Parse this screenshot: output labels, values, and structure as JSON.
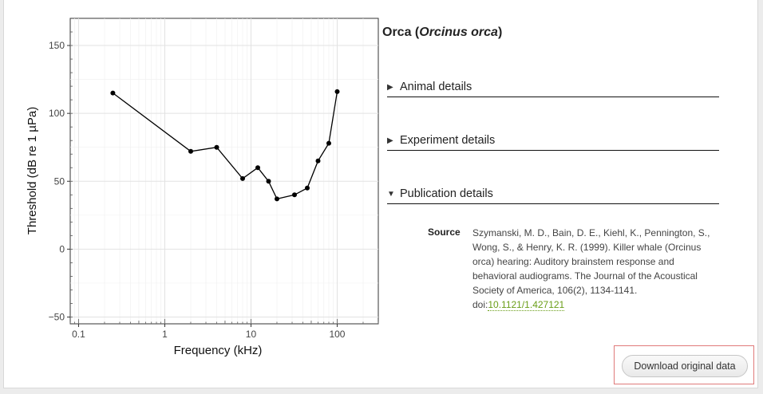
{
  "species": {
    "common_name": "Orca",
    "scientific_name": "Orcinus orca"
  },
  "sections": [
    {
      "label": "Animal details",
      "expanded": false
    },
    {
      "label": "Experiment details",
      "expanded": false
    },
    {
      "label": "Publication details",
      "expanded": true
    }
  ],
  "publication": {
    "source_label": "Source",
    "citation": "Szymanski, M. D., Bain, D. E., Kiehl, K., Pennington, S., Wong, S., & Henry, K. R. (1999). Killer whale (Orcinus orca) hearing: Auditory brainstem response and behavioral audiograms. The Journal of the Acoustical Society of America, 106(2), 1134-1141.",
    "doi_prefix": "doi:",
    "doi_link": "10.1121/1.427121"
  },
  "download_label": "Download original data",
  "colors": {
    "link": "#6a9e18",
    "highlight_border": "#e07a7a",
    "line": "#000000"
  },
  "chart_data": {
    "type": "line",
    "xlabel": "Frequency (kHz)",
    "ylabel": "Threshold (dB re 1 µPa)",
    "x_scale": "log",
    "xlim": [
      0.08,
      300
    ],
    "ylim": [
      -55,
      170
    ],
    "x_ticks": [
      0.1,
      1,
      10,
      100
    ],
    "x_tick_labels": [
      "0.1",
      "1",
      "10",
      "100"
    ],
    "y_ticks": [
      -50,
      0,
      50,
      100,
      150
    ],
    "y_tick_labels": [
      "−50",
      "0",
      "50",
      "100",
      "150"
    ],
    "grid": true,
    "series": [
      {
        "x": [
          0.25,
          2,
          4,
          8,
          12,
          16,
          20,
          32,
          45,
          60,
          80,
          100
        ],
        "y": [
          115,
          72,
          75,
          52,
          60,
          50,
          37,
          40,
          45,
          65,
          78,
          116
        ]
      }
    ]
  }
}
